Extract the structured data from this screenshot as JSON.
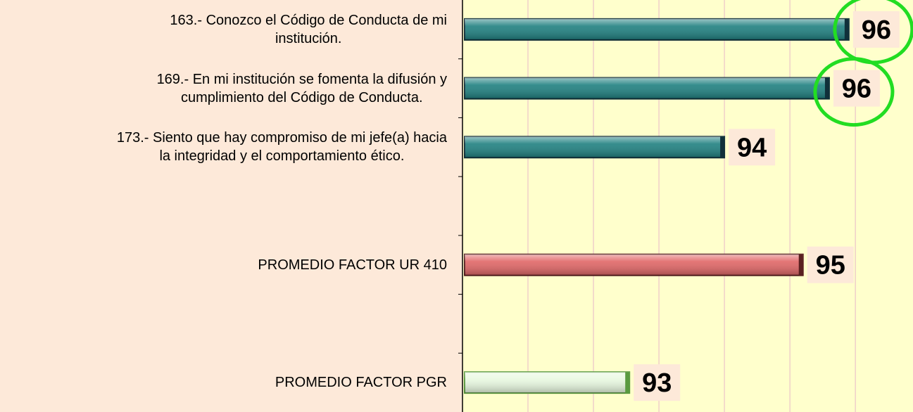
{
  "chart_data": {
    "type": "bar",
    "orientation": "horizontal",
    "categories": [
      "163.- Conozco el Código de Conducta de mi\ninstitución.",
      "169.- En mi institución se fomenta la difusión y\ncumplimiento del Código de Conducta.",
      "173.- Siento que hay compromiso de mi jefe(a) hacia\nla integridad y el comportamiento ético.",
      null,
      "PROMEDIO FACTOR UR 410",
      null,
      "PROMEDIO FACTOR PGR"
    ],
    "values": [
      95.9,
      95.6,
      94.0,
      null,
      95.2,
      null,
      92.55
    ],
    "value_labels": [
      "96",
      "96",
      "94",
      null,
      "95",
      null,
      "93"
    ],
    "colors": [
      "#1f8080",
      "#1f8080",
      "#1f8080",
      null,
      "#e06666",
      null,
      "#e8f8e0"
    ],
    "xlim": [
      90,
      96.88
    ],
    "xticks": [
      91,
      92,
      93,
      94,
      95,
      96
    ],
    "grid": true
  }
}
